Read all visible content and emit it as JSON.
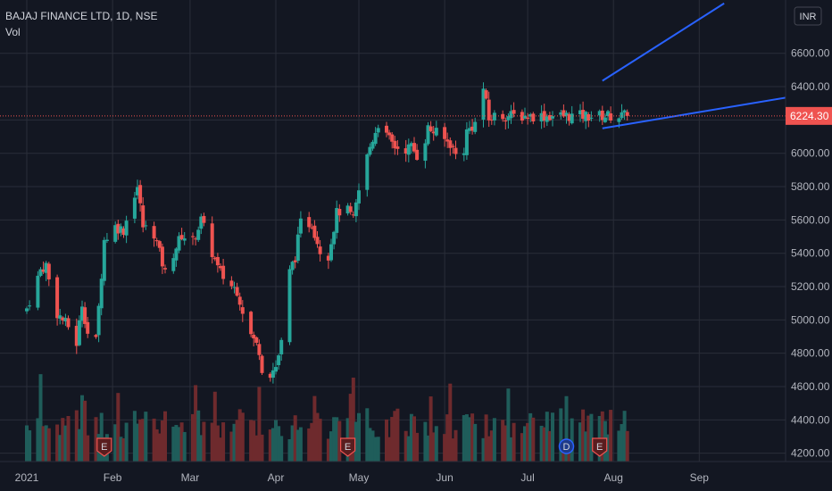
{
  "header": {
    "symbol_line": "BAJAJ FINANCE LTD, 1D, NSE",
    "volume_label": "Vol"
  },
  "currency_label": "INR",
  "colors": {
    "background": "#131722",
    "up": "#26a69a",
    "down": "#ef5350",
    "trendline": "#2962ff",
    "text": "#b2b5be"
  },
  "chart_data": {
    "type": "candlestick",
    "ylim": [
      4150,
      6920
    ],
    "y_ticks": [
      "6600.00",
      "6400.00",
      "6200.00",
      "6000.00",
      "5800.00",
      "5600.00",
      "5400.00",
      "5200.00",
      "5000.00",
      "4800.00",
      "4600.00",
      "4400.00",
      "4200.00"
    ],
    "y_tick_values": [
      6600,
      6400,
      6200,
      6000,
      5800,
      5600,
      5400,
      5200,
      5000,
      4800,
      4600,
      4400,
      4200
    ],
    "x_ticks": [
      "2021",
      "Feb",
      "Mar",
      "Apr",
      "May",
      "Jun",
      "Jul",
      "Aug",
      "Sep"
    ],
    "x_tick_days": [
      0,
      31,
      59,
      90,
      120,
      151,
      181,
      212,
      243
    ],
    "last_price": 6224.3,
    "last_price_label": "6224.30",
    "trading_days": [
      0,
      1,
      4,
      5,
      6,
      7,
      8,
      11,
      12,
      13,
      14,
      15,
      18,
      19,
      20,
      21,
      22,
      25,
      26,
      27,
      28,
      29,
      32,
      33,
      34,
      35,
      36,
      39,
      40,
      41,
      42,
      43,
      46,
      47,
      48,
      49,
      50,
      53,
      54,
      55,
      56,
      57,
      60,
      61,
      62,
      63,
      64,
      67,
      68,
      69,
      70,
      71,
      74,
      75,
      76,
      77,
      78,
      81,
      82,
      83,
      84,
      85,
      88,
      89,
      90,
      91,
      92,
      95,
      96,
      97,
      98,
      99,
      102,
      103,
      104,
      105,
      106,
      109,
      110,
      111,
      112,
      113,
      116,
      117,
      118,
      119,
      120,
      123,
      124,
      125,
      126,
      127,
      130,
      131,
      132,
      133,
      134,
      137,
      138,
      139,
      140,
      141,
      144,
      145,
      146,
      147,
      148,
      151,
      152,
      153,
      154,
      155,
      158,
      159,
      160,
      161,
      162,
      165,
      166,
      167,
      168,
      169,
      172,
      173,
      174,
      175,
      176,
      179,
      180,
      181,
      182,
      183,
      186,
      187,
      188,
      189,
      190,
      193,
      194,
      195,
      196,
      197,
      200,
      201,
      202,
      203,
      204,
      207,
      208,
      209,
      210,
      211,
      214,
      215,
      216,
      217
    ],
    "close_anchors": [
      [
        0,
        5070
      ],
      [
        5,
        5300
      ],
      [
        7,
        5330
      ],
      [
        9,
        5150
      ],
      [
        11,
        5040
      ],
      [
        15,
        4960
      ],
      [
        17,
        4740
      ],
      [
        20,
        5100
      ],
      [
        23,
        4830
      ],
      [
        25,
        4870
      ],
      [
        28,
        5480
      ],
      [
        32,
        5560
      ],
      [
        35,
        5540
      ],
      [
        38,
        5720
      ],
      [
        40,
        5800
      ],
      [
        42,
        5560
      ],
      [
        46,
        5520
      ],
      [
        50,
        5280
      ],
      [
        54,
        5440
      ],
      [
        56,
        5510
      ],
      [
        60,
        5470
      ],
      [
        63,
        5600
      ],
      [
        66,
        5450
      ],
      [
        69,
        5310
      ],
      [
        72,
        5230
      ],
      [
        76,
        5180
      ],
      [
        78,
        5060
      ],
      [
        81,
        4910
      ],
      [
        84,
        4820
      ],
      [
        86,
        4600
      ],
      [
        88,
        4680
      ],
      [
        90,
        4720
      ],
      [
        92,
        4860
      ],
      [
        94,
        5240
      ],
      [
        97,
        5380
      ],
      [
        99,
        5580
      ],
      [
        103,
        5580
      ],
      [
        106,
        5420
      ],
      [
        109,
        5390
      ],
      [
        112,
        5640
      ],
      [
        115,
        5680
      ],
      [
        118,
        5600
      ],
      [
        121,
        5860
      ],
      [
        124,
        6040
      ],
      [
        127,
        6180
      ],
      [
        130,
        6100
      ],
      [
        133,
        6040
      ],
      [
        136,
        6020
      ],
      [
        139,
        6040
      ],
      [
        142,
        5960
      ],
      [
        145,
        6150
      ],
      [
        148,
        6120
      ],
      [
        151,
        6080
      ],
      [
        153,
        6060
      ],
      [
        157,
        5920
      ],
      [
        159,
        6130
      ],
      [
        162,
        6180
      ],
      [
        165,
        6390
      ],
      [
        167,
        6200
      ],
      [
        169,
        6224.3
      ]
    ],
    "volume_max_millions": 5,
    "event_markers": [
      {
        "label": "E",
        "day": 28
      },
      {
        "label": "E",
        "day": 116
      },
      {
        "label": "D",
        "day": 195
      },
      {
        "label": "E",
        "day": 207
      }
    ],
    "trendlines": [
      {
        "from": {
          "day": 208,
          "price": 6435
        },
        "to": {
          "day": 252,
          "price": 6900
        }
      },
      {
        "from": {
          "day": 208,
          "price": 6150
        },
        "to": {
          "day": 280,
          "price": 6350
        }
      }
    ]
  }
}
